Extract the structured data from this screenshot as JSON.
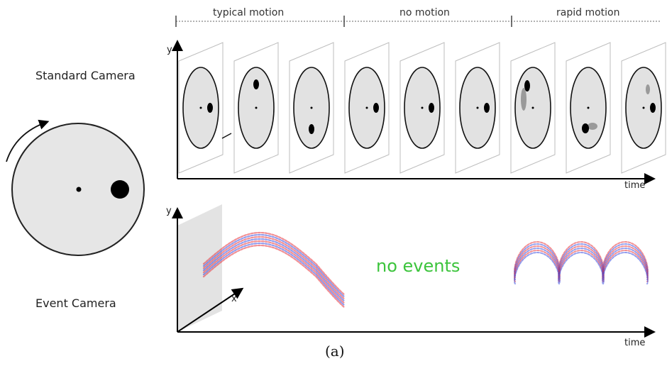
{
  "segments": [
    {
      "label": "typical motion"
    },
    {
      "label": "no motion"
    },
    {
      "label": "rapid motion"
    }
  ],
  "labels": {
    "standard_camera": "Standard Camera",
    "event_camera": "Event Camera",
    "no_events": "no events",
    "caption": "(a)"
  },
  "axes": {
    "top_y": "y",
    "top_time": "time",
    "bottom_y": "y",
    "bottom_x": "x",
    "bottom_time": "time"
  },
  "colors": {
    "disk_fill": "#e6e6e6",
    "dot": "#000000",
    "event_positive": "#e8343c",
    "event_negative": "#3a4fe0",
    "no_events_text": "#3cc43c",
    "frame_plane": "#d7d7d7"
  }
}
